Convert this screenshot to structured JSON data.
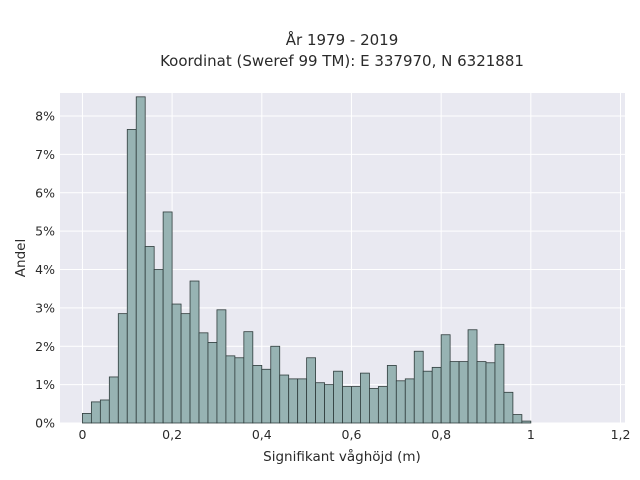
{
  "chart_data": {
    "type": "bar",
    "title": "År 1979 - 2019",
    "subtitle": "Koordinat (Sweref 99 TM): E 337970, N 6321881",
    "xlabel": "Signifikant våghöjd (m)",
    "ylabel": "Andel",
    "xlim": [
      -0.05,
      1.21
    ],
    "ylim": [
      0,
      8.6
    ],
    "x_ticks": [
      0,
      0.2,
      0.4,
      0.6,
      0.8,
      1.0,
      1.2
    ],
    "x_tick_labels": [
      "0",
      "0,2",
      "0,4",
      "0,6",
      "0,8",
      "1",
      "1,2"
    ],
    "y_ticks": [
      0,
      1,
      2,
      3,
      4,
      5,
      6,
      7,
      8
    ],
    "y_tick_labels": [
      "0%",
      "1%",
      "2%",
      "3%",
      "4%",
      "5%",
      "6%",
      "7%",
      "8%"
    ],
    "grid": true,
    "bin_width": 0.02,
    "bin_start": 0.01,
    "values": [
      0.25,
      0.55,
      0.6,
      1.2,
      2.85,
      7.65,
      8.5,
      4.6,
      4.0,
      5.5,
      3.1,
      2.85,
      3.7,
      2.35,
      2.1,
      2.95,
      1.75,
      1.7,
      2.38,
      1.5,
      1.4,
      2.0,
      1.25,
      1.15,
      1.15,
      1.7,
      1.05,
      1.0,
      1.35,
      0.95,
      0.95,
      1.3,
      0.9,
      0.95,
      1.5,
      1.1,
      1.15,
      1.87,
      1.35,
      1.45,
      2.3,
      1.6,
      1.6,
      2.43,
      1.6,
      1.57,
      2.05,
      0.8,
      0.22,
      0.05
    ],
    "colors": {
      "bar_fill": "#97b3b3",
      "bar_stroke": "#2f3c3c",
      "plot_bg": "#e9e9f1",
      "grid": "#ffffff"
    }
  }
}
